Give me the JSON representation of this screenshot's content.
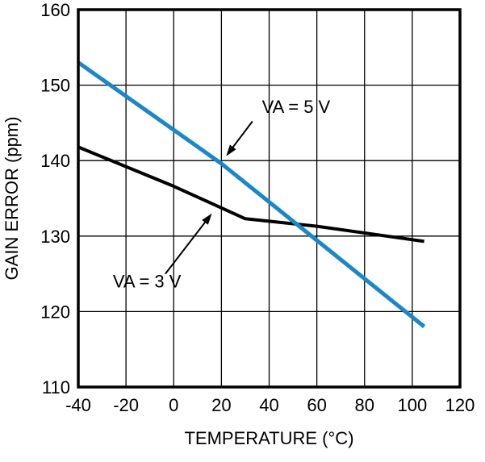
{
  "figure": {
    "background": "#ffffff",
    "border_color": "#000000",
    "grid_color": "#000000"
  },
  "chart_data": {
    "type": "line",
    "title": "",
    "xlabel": "TEMPERATURE (°C)",
    "ylabel": "GAIN ERROR (ppm)",
    "xlim": [
      -40,
      120
    ],
    "ylim": [
      110,
      160
    ],
    "x_ticks": [
      -40,
      -20,
      0,
      20,
      40,
      60,
      80,
      100,
      120
    ],
    "y_ticks": [
      110,
      120,
      130,
      140,
      150,
      160
    ],
    "grid": true,
    "series": [
      {
        "name": "VA = 3 V",
        "color": "#000000",
        "width": 4,
        "points": [
          [
            -40,
            141.8
          ],
          [
            0,
            136.6
          ],
          [
            30,
            132.3
          ],
          [
            60,
            131.3
          ],
          [
            105,
            129.3
          ]
        ]
      },
      {
        "name": "VA = 5 V",
        "color": "#1b87c9",
        "width": 5,
        "points": [
          [
            -40,
            153
          ],
          [
            20,
            139.6
          ],
          [
            105,
            118
          ]
        ]
      }
    ],
    "annotations": [
      {
        "label": "VA = 5 V",
        "text_x": 37,
        "text_y": 146.3,
        "anchor": "start",
        "arrow_from": [
          33,
          145.2
        ],
        "arrow_to": [
          22,
          140.6
        ]
      },
      {
        "label": "VA = 3 V",
        "text_x": -25.5,
        "text_y": 123.2,
        "anchor": "start",
        "arrow_from": [
          -3.5,
          125.0
        ],
        "arrow_to": [
          16,
          133.0
        ]
      }
    ]
  }
}
